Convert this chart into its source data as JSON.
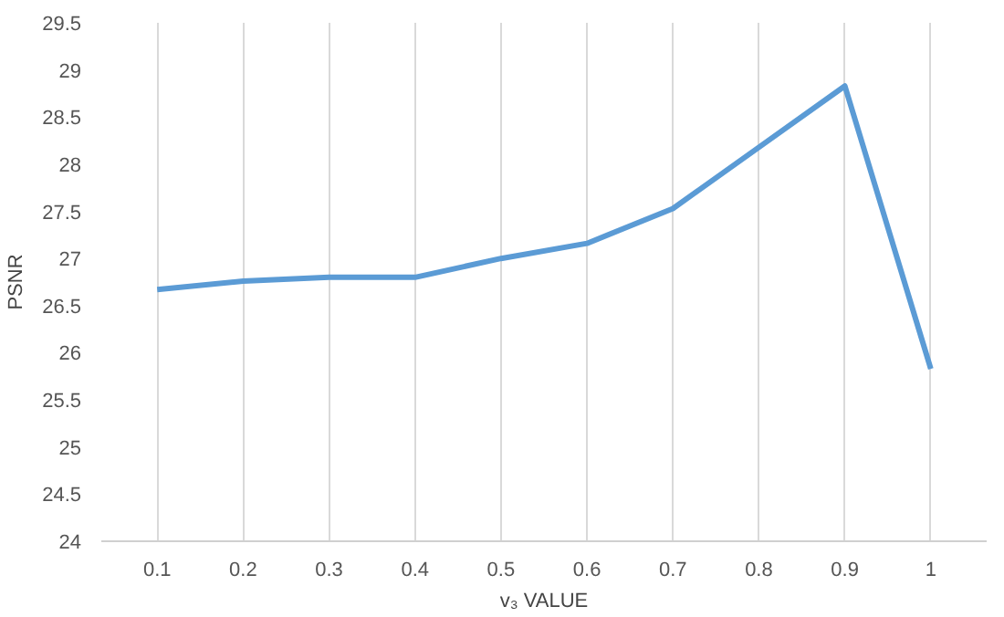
{
  "chart_data": {
    "type": "line",
    "xlabel": "v₃ VALUE",
    "ylabel": "PSNR",
    "categories": [
      "0.1",
      "0.2",
      "0.3",
      "0.4",
      "0.5",
      "0.6",
      "0.7",
      "0.8",
      "0.9",
      "1"
    ],
    "series": [
      {
        "color": "#5b9bd5",
        "values": [
          26.67,
          26.76,
          26.8,
          26.8,
          27.0,
          27.16,
          27.53,
          28.18,
          28.83,
          25.83
        ]
      }
    ],
    "ylim": [
      24,
      29.5
    ],
    "yticks": [
      24,
      24.5,
      25,
      25.5,
      26,
      26.5,
      27,
      27.5,
      28,
      28.5,
      29,
      29.5
    ],
    "grid": "x",
    "marker": "none",
    "line_style": "solid"
  }
}
